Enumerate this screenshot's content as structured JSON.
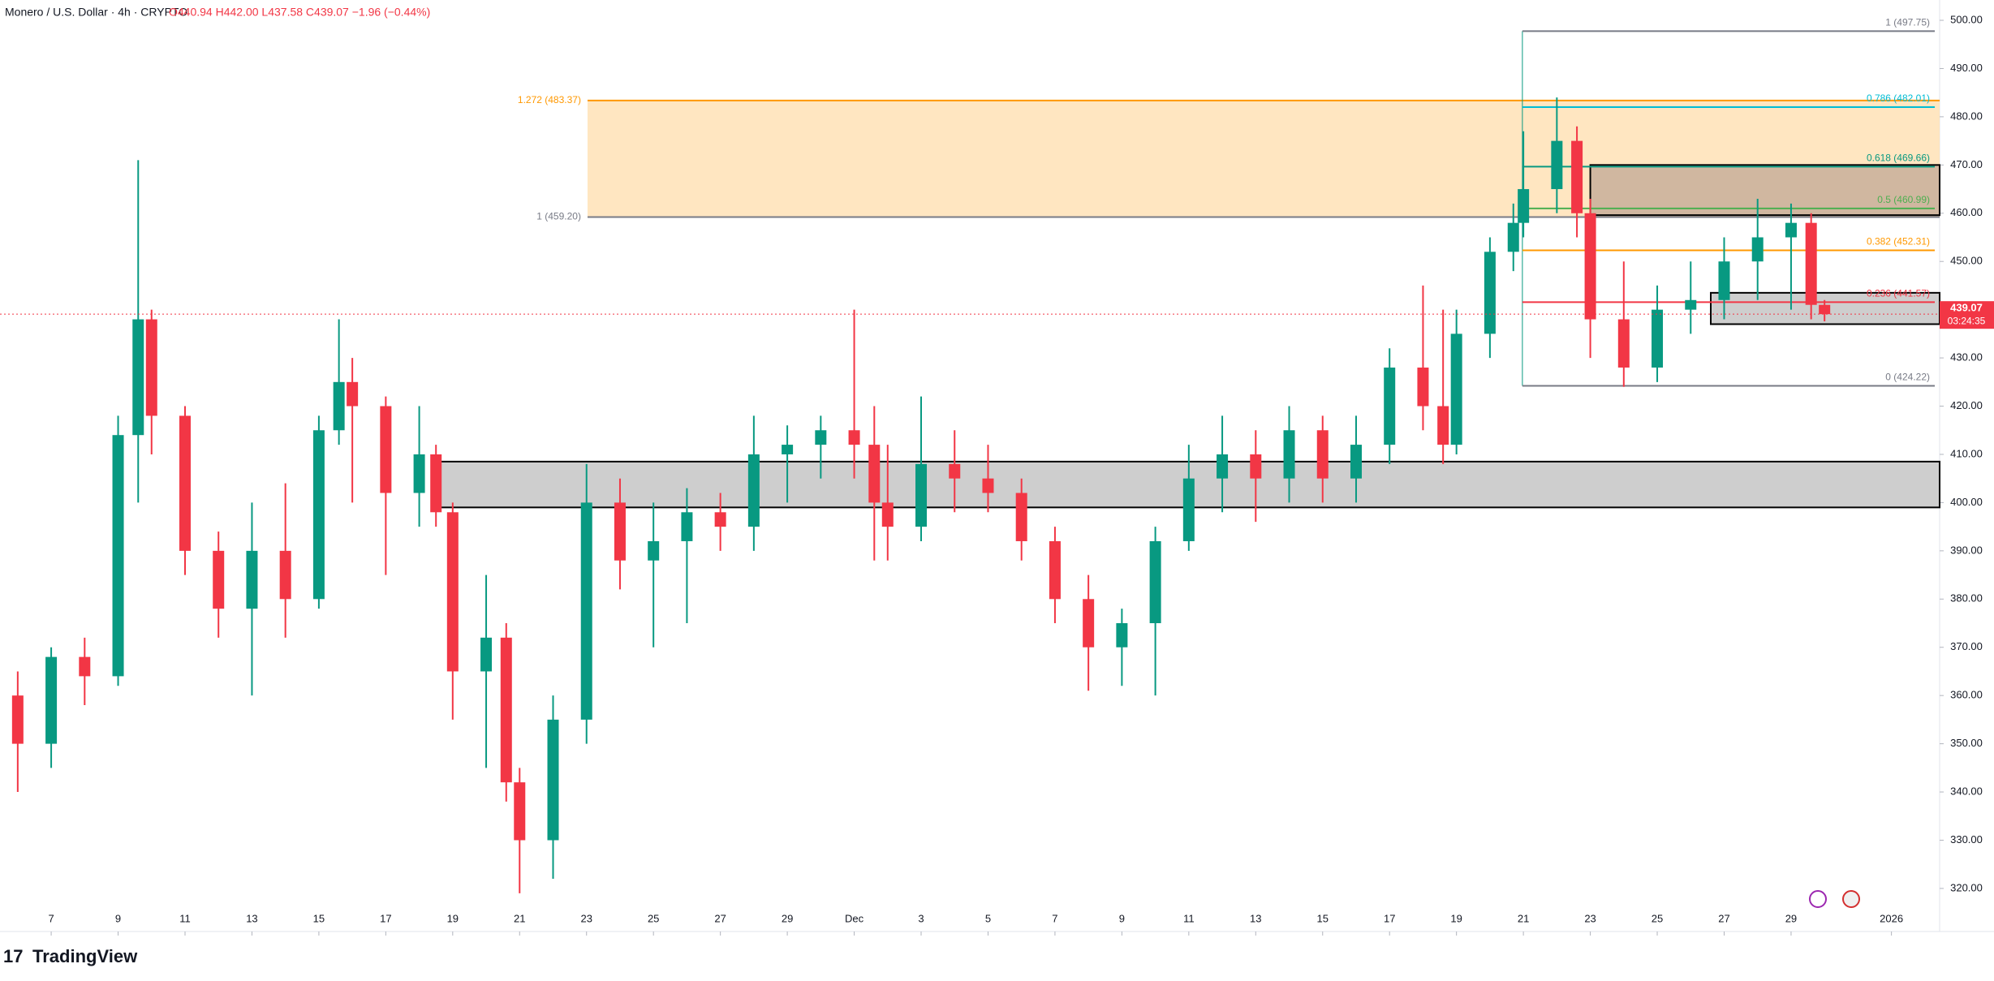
{
  "header": {
    "symbol": "Monero / U.S. Dollar · 4h · CRYPTO",
    "ohlc": "O440.94 H442.00 L437.58 C439.07 −1.96 (−0.44%)"
  },
  "chart_data": {
    "type": "candlestick",
    "x": [
      6,
      7,
      8,
      9,
      9.6,
      10,
      11,
      12,
      13,
      14,
      15,
      15.6,
      16,
      17,
      18,
      18.5,
      19,
      20,
      20.6,
      21,
      22,
      23,
      24,
      25,
      26,
      27,
      28,
      29,
      30,
      31,
      31.6,
      32,
      33,
      34,
      35,
      36,
      37,
      38,
      39,
      40,
      41,
      42,
      43,
      44,
      45,
      46,
      47,
      48,
      48.6,
      49,
      50,
      50.7,
      51,
      52,
      52.6,
      53,
      54,
      55,
      56,
      57,
      58,
      59,
      59.6,
      60
    ],
    "open": [
      360,
      350,
      368,
      364,
      414,
      438,
      418,
      390,
      378,
      390,
      380,
      415,
      425,
      420,
      402,
      410,
      398,
      365,
      372,
      342,
      330,
      355,
      400,
      388,
      392,
      398,
      395,
      410,
      412,
      415,
      412,
      400,
      395,
      408,
      405,
      402,
      392,
      380,
      370,
      375,
      392,
      405,
      410,
      405,
      415,
      405,
      412,
      428,
      420,
      412,
      435,
      452,
      458,
      465,
      475,
      460,
      438,
      428,
      440,
      442,
      450,
      455,
      458,
      441
    ],
    "high": [
      365,
      370,
      372,
      418,
      471,
      440,
      420,
      394,
      400,
      404,
      418,
      438,
      430,
      422,
      420,
      412,
      400,
      385,
      375,
      345,
      360,
      408,
      405,
      400,
      403,
      402,
      418,
      416,
      418,
      440,
      420,
      412,
      422,
      415,
      412,
      405,
      395,
      385,
      378,
      395,
      412,
      418,
      415,
      420,
      418,
      418,
      432,
      445,
      440,
      440,
      455,
      462,
      477,
      484,
      478,
      463,
      450,
      445,
      450,
      455,
      463,
      462,
      460,
      442
    ],
    "low": [
      340,
      345,
      358,
      362,
      400,
      410,
      385,
      372,
      360,
      372,
      378,
      412,
      400,
      385,
      395,
      395,
      355,
      345,
      338,
      319,
      322,
      350,
      382,
      370,
      375,
      390,
      390,
      400,
      405,
      405,
      388,
      388,
      392,
      398,
      398,
      388,
      375,
      361,
      362,
      360,
      390,
      398,
      396,
      400,
      400,
      400,
      408,
      415,
      408,
      410,
      430,
      448,
      455,
      460,
      455,
      430,
      424,
      425,
      435,
      438,
      442,
      440,
      438,
      437.58
    ],
    "close": [
      350,
      368,
      364,
      414,
      438,
      418,
      390,
      378,
      390,
      380,
      415,
      425,
      420,
      402,
      410,
      398,
      365,
      372,
      342,
      330,
      355,
      400,
      388,
      392,
      398,
      395,
      410,
      412,
      415,
      412,
      400,
      395,
      408,
      405,
      402,
      392,
      380,
      370,
      375,
      392,
      405,
      410,
      405,
      415,
      405,
      412,
      428,
      420,
      412,
      435,
      452,
      458,
      465,
      475,
      460,
      438,
      428,
      440,
      442,
      450,
      455,
      458,
      441,
      439.07
    ],
    "up_color": "#089981",
    "down_color": "#f23645",
    "xlim": [
      5.47,
      63.44
    ],
    "ylim": [
      311.07,
      504.21
    ],
    "xticks": [
      7,
      9,
      11,
      13,
      15,
      17,
      19,
      21,
      23,
      25,
      27,
      29,
      {
        "value": 31,
        "label": "Dec"
      },
      {
        "value": 33,
        "label": "3"
      },
      {
        "value": 35,
        "label": "5"
      },
      {
        "value": 37,
        "label": "7"
      },
      {
        "value": 39,
        "label": "9"
      },
      {
        "value": 41,
        "label": "11"
      },
      {
        "value": 43,
        "label": "13"
      },
      {
        "value": 45,
        "label": "15"
      },
      {
        "value": 47,
        "label": "17"
      },
      {
        "value": 49,
        "label": "19"
      },
      {
        "value": 51,
        "label": "21"
      },
      {
        "value": 53,
        "label": "23"
      },
      {
        "value": 55,
        "label": "25"
      },
      {
        "value": 57,
        "label": "27"
      },
      {
        "value": 59,
        "label": "29"
      },
      {
        "value": 62,
        "label": "2026"
      }
    ],
    "yticks": [
      {
        "value": 320,
        "label": "320.00"
      },
      {
        "value": 330,
        "label": "330.00"
      },
      {
        "value": 340,
        "label": "340.00"
      },
      {
        "value": 350,
        "label": "350.00"
      },
      {
        "value": 360,
        "label": "360.00"
      },
      {
        "value": 370,
        "label": "370.00"
      },
      {
        "value": 380,
        "label": "380.00"
      },
      {
        "value": 390,
        "label": "390.00"
      },
      {
        "value": 400,
        "label": "400.00"
      },
      {
        "value": 410,
        "label": "410.00"
      },
      {
        "value": 420,
        "label": "420.00"
      },
      {
        "value": 430,
        "label": "430.00"
      },
      {
        "value": 440,
        "label": "440.00"
      },
      {
        "value": 450,
        "label": "450.00"
      },
      {
        "value": 460,
        "label": "460.00"
      },
      {
        "value": 470,
        "label": "470.00"
      },
      {
        "value": 480,
        "label": "480.00"
      },
      {
        "value": 490,
        "label": "490.00"
      },
      {
        "value": 500,
        "label": "500.00"
      }
    ],
    "last_price": 439.07,
    "countdown": "03:24:35",
    "last_color": "#f23645",
    "zones": [
      {
        "x_start": 18.5,
        "ylim": [
          399,
          408.5
        ],
        "color": "#9e9e9e"
      },
      {
        "x_start": 53,
        "ylim": [
          459.6,
          470
        ],
        "color": "#a1887f"
      },
      {
        "x_start": 56.6,
        "ylim": [
          437,
          443.5
        ],
        "color": "#9e9e9e"
      }
    ],
    "fib_extension": {
      "x_start": 23.03,
      "fill": "#ffe0b2",
      "levels": [
        {
          "value": 483.37,
          "label": "1.272 (483.37)",
          "color": "#ff9800"
        },
        {
          "value": 459.2,
          "label": "1 (459.20)",
          "color": "#787b86"
        }
      ]
    },
    "fib_retracement": {
      "x_start": 50.97,
      "levels": [
        {
          "value": 497.75,
          "label": "1 (497.75)",
          "color": "#787b86"
        },
        {
          "value": 482.01,
          "label": "0.786 (482.01)",
          "color": "#00bcd4"
        },
        {
          "value": 469.66,
          "label": "0.618 (469.66)",
          "color": "#089981"
        },
        {
          "value": 460.99,
          "label": "0.5 (460.99)",
          "color": "#4caf50"
        },
        {
          "value": 452.31,
          "label": "0.382 (452.31)",
          "color": "#ff9800"
        },
        {
          "value": 441.57,
          "label": "0.236 (441.57)",
          "color": "#f23645"
        },
        {
          "value": 424.22,
          "label": "0 (424.22)",
          "color": "#787b86"
        }
      ]
    }
  },
  "footer": {
    "brand": "TradingView"
  }
}
